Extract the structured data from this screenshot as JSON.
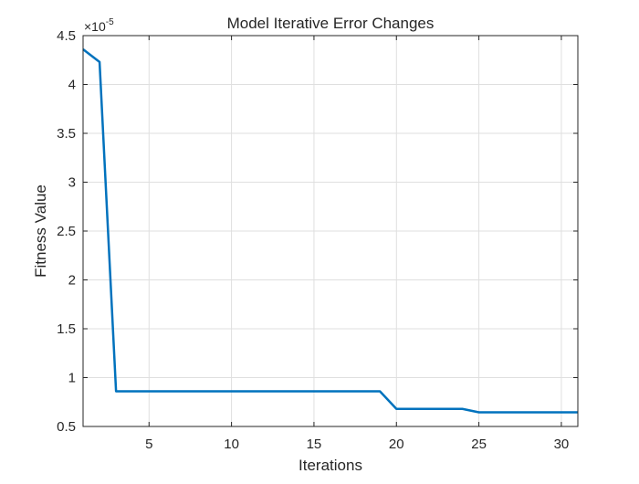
{
  "chart_data": {
    "type": "line",
    "title": "Model Iterative Error Changes",
    "xlabel": "Iterations",
    "ylabel": "Fitness Value",
    "y_exponent_base": "×10",
    "y_exponent_power": "-5",
    "xlim": [
      1,
      31
    ],
    "ylim": [
      0.5,
      4.5
    ],
    "x_ticks": [
      5,
      10,
      15,
      20,
      25,
      30
    ],
    "x_tick_labels": [
      "5",
      "10",
      "15",
      "20",
      "25",
      "30"
    ],
    "y_ticks": [
      0.5,
      1,
      1.5,
      2,
      2.5,
      3,
      3.5,
      4,
      4.5
    ],
    "y_tick_labels": [
      "0.5",
      "1",
      "1.5",
      "2",
      "2.5",
      "3",
      "3.5",
      "4",
      "4.5"
    ],
    "grid": true,
    "line_color": "#0072BD",
    "series": [
      {
        "x": [
          1,
          2,
          3,
          4,
          5,
          6,
          7,
          8,
          9,
          10,
          11,
          12,
          13,
          14,
          15,
          16,
          17,
          18,
          19,
          20,
          21,
          22,
          23,
          24,
          25,
          26,
          27,
          28,
          29,
          30,
          31
        ],
        "values": [
          4.36,
          4.23,
          0.86,
          0.86,
          0.86,
          0.86,
          0.86,
          0.86,
          0.86,
          0.86,
          0.86,
          0.86,
          0.86,
          0.86,
          0.86,
          0.86,
          0.86,
          0.86,
          0.86,
          0.68,
          0.68,
          0.68,
          0.68,
          0.68,
          0.645,
          0.645,
          0.645,
          0.645,
          0.645,
          0.645,
          0.645
        ]
      }
    ]
  }
}
